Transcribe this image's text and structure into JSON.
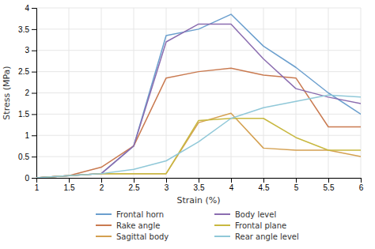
{
  "chart_data": {
    "type": "line",
    "xlabel": "Strain (%)",
    "ylabel": "Stress (MPa)",
    "x": [
      1,
      1.5,
      2,
      2.5,
      3,
      3.5,
      4,
      4.5,
      5,
      5.5,
      6
    ],
    "series": [
      {
        "name": "Frontal horn",
        "color": "#6b9fce",
        "values": [
          0,
          0.05,
          0.1,
          0.75,
          3.35,
          3.5,
          3.85,
          3.1,
          2.6,
          2.0,
          1.5
        ]
      },
      {
        "name": "Rake angle",
        "color": "#c97a50",
        "values": [
          0,
          0.05,
          0.25,
          0.75,
          2.35,
          2.5,
          2.58,
          2.42,
          2.35,
          1.2,
          1.2
        ]
      },
      {
        "name": "Sagittal body",
        "color": "#d4a050",
        "values": [
          0,
          0.05,
          0.1,
          0.1,
          0.1,
          1.3,
          1.52,
          0.7,
          0.65,
          0.65,
          0.5
        ]
      },
      {
        "name": "Body level",
        "color": "#8b6db0",
        "values": [
          0,
          0.05,
          0.1,
          0.75,
          3.2,
          3.62,
          3.62,
          2.8,
          2.1,
          1.9,
          1.75
        ]
      },
      {
        "name": "Frontal plane",
        "color": "#c8b840",
        "values": [
          0,
          0.05,
          0.1,
          0.1,
          0.1,
          1.35,
          1.4,
          1.4,
          0.95,
          0.65,
          0.65
        ]
      },
      {
        "name": "Rear angle level",
        "color": "#90c8d8",
        "values": [
          0,
          0.05,
          0.1,
          0.2,
          0.4,
          0.85,
          1.4,
          1.65,
          1.8,
          1.95,
          1.9
        ]
      }
    ],
    "xlim": [
      1,
      6
    ],
    "ylim": [
      0,
      4
    ],
    "xticks": [
      1,
      1.5,
      2,
      2.5,
      3,
      3.5,
      4,
      4.5,
      5,
      5.5,
      6
    ],
    "yticks": [
      0,
      0.5,
      1,
      1.5,
      2,
      2.5,
      3,
      3.5,
      4
    ],
    "grid": true,
    "legend": "bottom"
  }
}
